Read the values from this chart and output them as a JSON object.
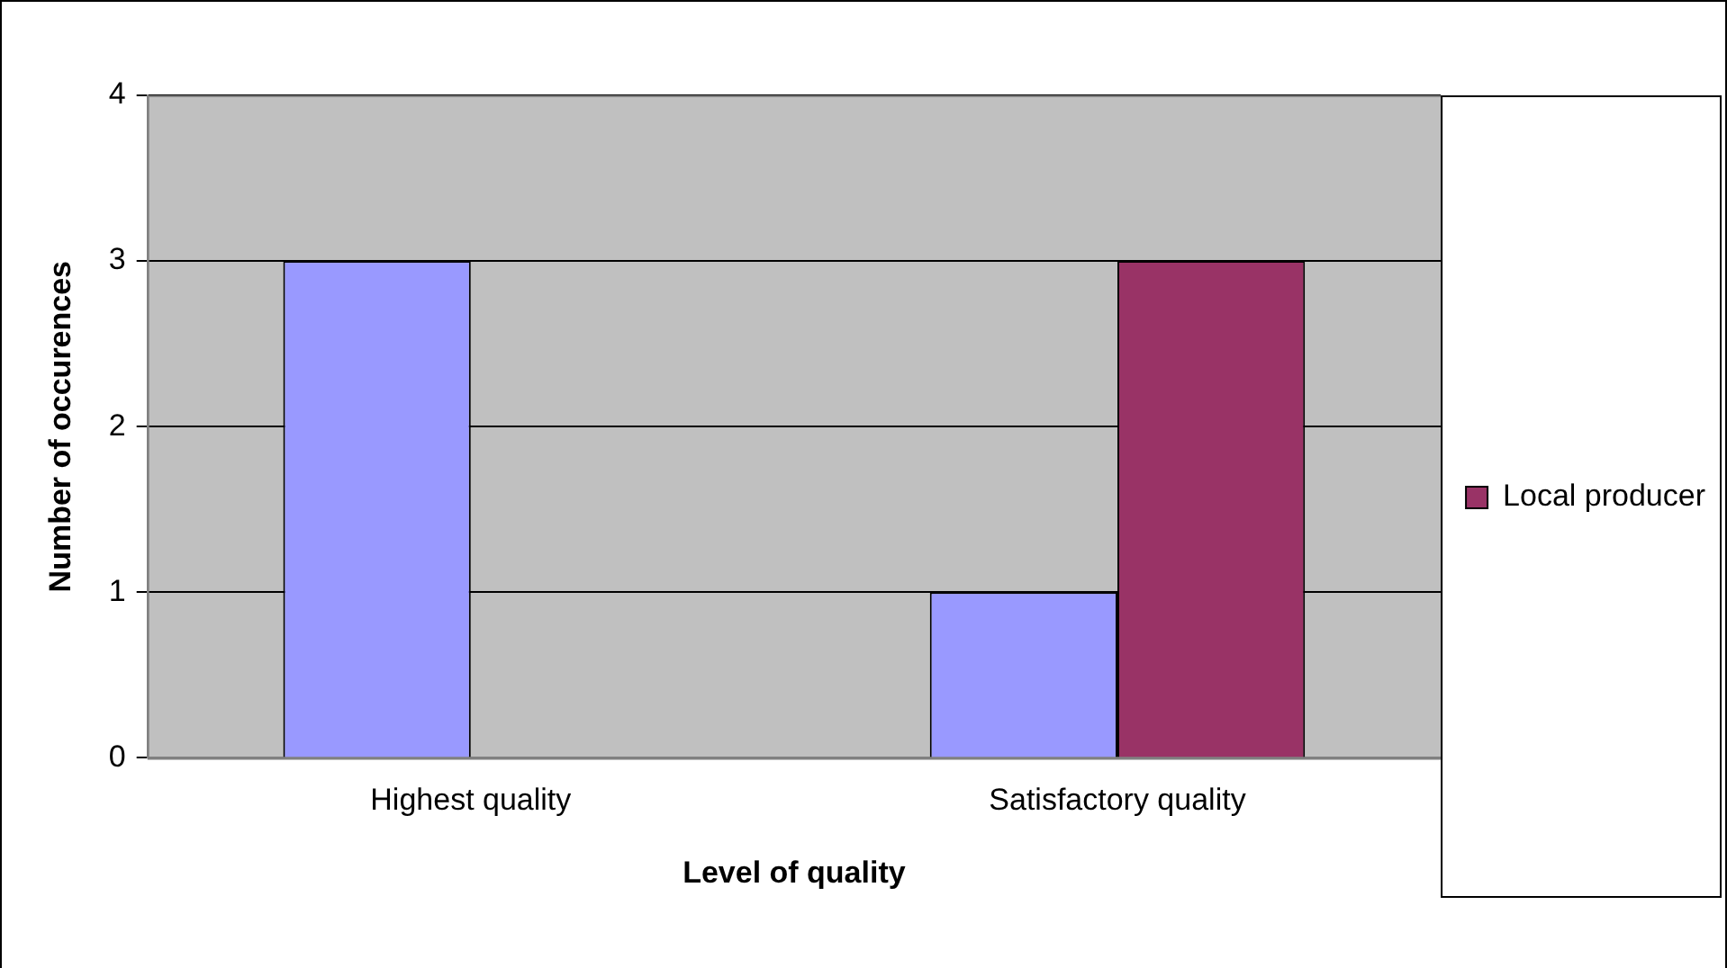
{
  "chart_data": {
    "type": "bar",
    "xlabel": "Level of quality",
    "ylabel": "Number of occurences",
    "categories": [
      "Highest quality",
      "Satisfactory quality"
    ],
    "series": [
      {
        "color": "#9999ff",
        "values": [
          3,
          1
        ]
      },
      {
        "name": "Local producer",
        "color": "#993366",
        "values": [
          0,
          3
        ]
      }
    ],
    "ylim": [
      0,
      4
    ],
    "yticks": [
      0,
      1,
      2,
      3,
      4
    ],
    "grid": "y",
    "legend": "right"
  }
}
